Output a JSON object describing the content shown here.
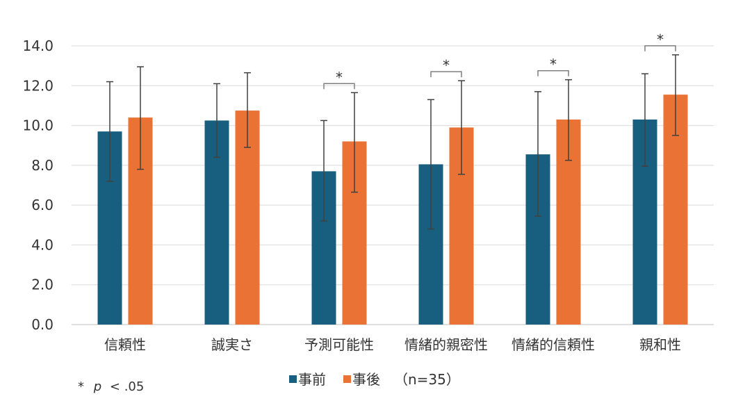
{
  "chart_data": {
    "type": "bar",
    "categories": [
      "信頼性",
      "誠実さ",
      "予測可能性",
      "情緒的親密性",
      "情緒的信頼性",
      "親和性"
    ],
    "series": [
      {
        "name": "事前",
        "color": "#175e7f",
        "values": [
          9.7,
          10.25,
          7.7,
          8.05,
          8.55,
          10.3
        ],
        "error_low": [
          7.2,
          8.4,
          5.2,
          4.8,
          5.45,
          7.95
        ],
        "error_high": [
          12.2,
          12.1,
          10.25,
          11.3,
          11.7,
          12.6
        ]
      },
      {
        "name": "事後",
        "color": "#e97234",
        "values": [
          10.4,
          10.75,
          9.2,
          9.9,
          10.3,
          11.55
        ],
        "error_low": [
          7.8,
          8.9,
          6.65,
          7.55,
          8.25,
          9.5
        ],
        "error_high": [
          12.95,
          12.65,
          11.65,
          12.25,
          12.3,
          13.55
        ]
      }
    ],
    "significance": [
      false,
      false,
      true,
      true,
      true,
      true
    ],
    "significance_mark": "*",
    "ylim": [
      0,
      14
    ],
    "yticks": [
      "0.0",
      "2.0",
      "4.0",
      "6.0",
      "8.0",
      "10.0",
      "12.0",
      "14.0"
    ],
    "grid": true,
    "legend": {
      "placement": "bottom-center",
      "items": [
        "事前",
        "事後"
      ],
      "suffix": "（n=35）"
    },
    "note": {
      "star": "*",
      "p": "p",
      "rest": "< .05"
    }
  }
}
